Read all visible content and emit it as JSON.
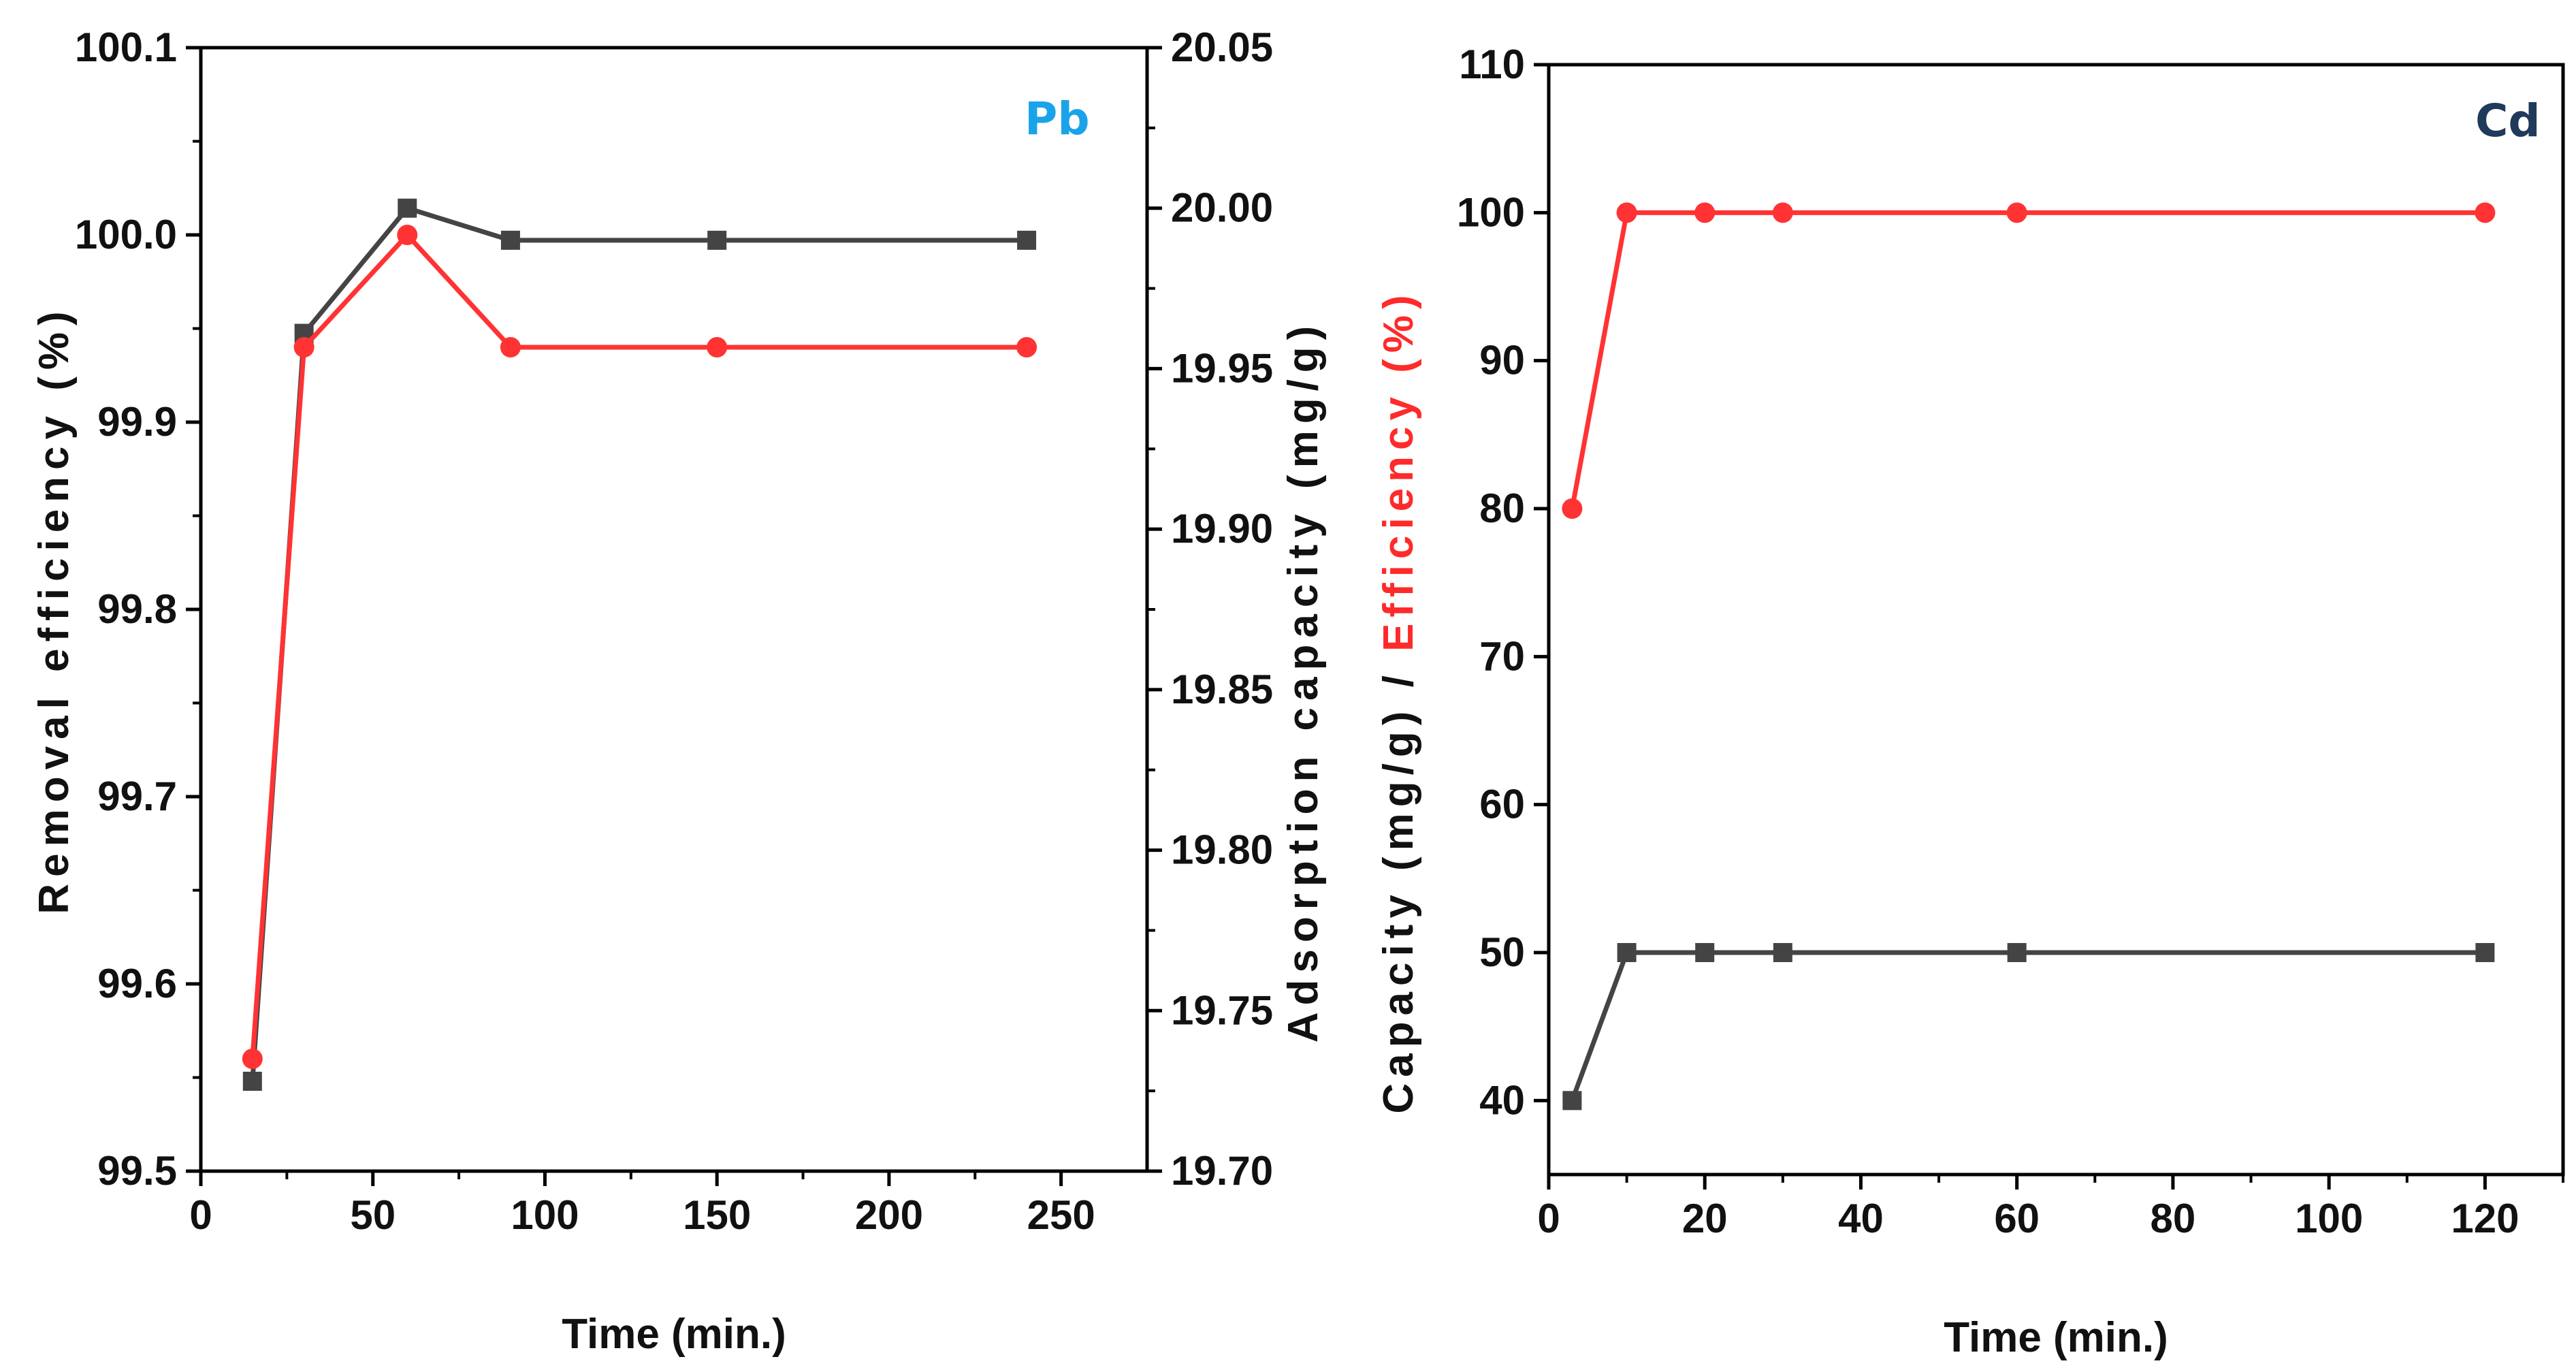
{
  "chart_data": [
    {
      "type": "line",
      "panel_label": "Pb",
      "panel_label_color": "#1aa3e8",
      "xlabel": "Time (min.)",
      "xlim": [
        0,
        275
      ],
      "xticks": [
        0,
        50,
        100,
        150,
        200,
        250
      ],
      "ylabel_left": "Removal efficiency (%)",
      "ylabel_left_color": "#ff2a2a",
      "ylim_left": [
        99.5,
        100.1
      ],
      "yticks_left": [
        "99.5",
        "99.6",
        "99.7",
        "99.8",
        "99.9",
        "100.0",
        "100.1"
      ],
      "ylabel_right": "Adsorption capacity (mg/g)",
      "ylabel_right_color": "#111111",
      "ylim_right": [
        19.7,
        20.05
      ],
      "yticks_right": [
        "19.70",
        "19.75",
        "19.80",
        "19.85",
        "19.90",
        "19.95",
        "20.00",
        "20.05"
      ],
      "series": [
        {
          "name": "Removal efficiency (%)",
          "axis": "left",
          "color": "#ff3333",
          "marker": "circle",
          "x": [
            15,
            30,
            60,
            90,
            150,
            240
          ],
          "values": [
            99.56,
            99.94,
            100.0,
            99.94,
            99.94,
            99.94
          ]
        },
        {
          "name": "Adsorption capacity (mg/g)",
          "axis": "right",
          "color": "#444444",
          "marker": "square",
          "x": [
            15,
            30,
            60,
            90,
            150,
            240
          ],
          "values": [
            19.728,
            19.961,
            20.0,
            19.99,
            19.99,
            19.99
          ]
        }
      ]
    },
    {
      "type": "line",
      "panel_label": "Cd",
      "panel_label_color": "#1f3a5a",
      "xlabel": "Time (min.)",
      "xlim": [
        0,
        130
      ],
      "xticks": [
        0,
        20,
        40,
        60,
        80,
        100,
        120
      ],
      "ylabel_parts": [
        {
          "text": "Capacity (mg/g) / ",
          "color": "#111111"
        },
        {
          "text": "Efficiency (%)",
          "color": "#ff2a2a"
        }
      ],
      "ylim": [
        35,
        110
      ],
      "yticks": [
        40,
        50,
        60,
        70,
        80,
        90,
        100,
        110
      ],
      "series": [
        {
          "name": "Efficiency (%)",
          "color": "#ff3333",
          "marker": "circle",
          "x": [
            3,
            10,
            20,
            30,
            60,
            120
          ],
          "values": [
            80,
            100,
            100,
            100,
            100,
            100
          ]
        },
        {
          "name": "Capacity (mg/g)",
          "color": "#444444",
          "marker": "square",
          "x": [
            3,
            10,
            20,
            30,
            60,
            120
          ],
          "values": [
            40,
            50,
            50,
            50,
            50,
            50
          ]
        }
      ]
    }
  ]
}
